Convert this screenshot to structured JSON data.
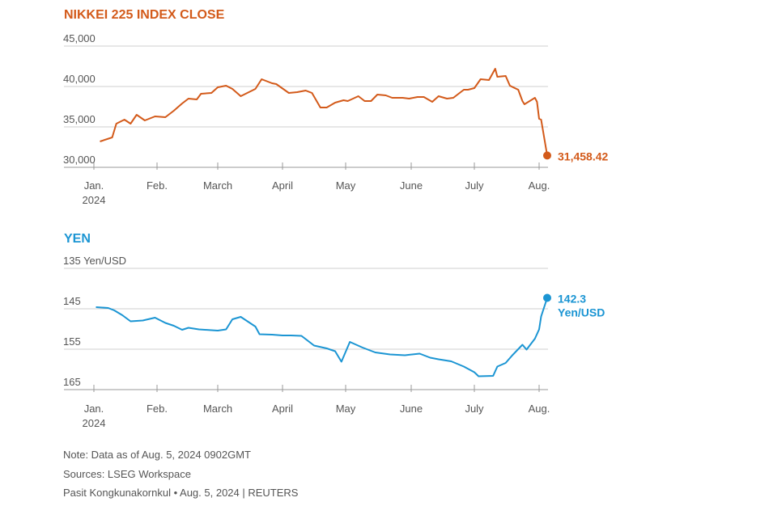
{
  "colors": {
    "nikkei": "#d35a1a",
    "yen": "#1b95d3",
    "text": "#555555",
    "grid": "#cfcfcf"
  },
  "months": [
    "Jan.",
    "Feb.",
    "March",
    "April",
    "May",
    "June",
    "July",
    "Aug."
  ],
  "year": "2024",
  "chart_data": [
    {
      "type": "line",
      "title": "NIKKEI 225 INDEX CLOSE",
      "ylim": [
        30000,
        45000
      ],
      "yticks": [
        "45,000",
        "40,000",
        "35,000",
        "30,000"
      ],
      "ytick_values": [
        45000,
        40000,
        35000,
        30000
      ],
      "y_inverted": false,
      "end_label": [
        "31,458.42"
      ],
      "series": [
        {
          "x": [
            "2024-01-04",
            "2024-01-10",
            "2024-01-12",
            "2024-01-16",
            "2024-01-19",
            "2024-01-22",
            "2024-01-26",
            "2024-01-31",
            "2024-02-05",
            "2024-02-09",
            "2024-02-13",
            "2024-02-16",
            "2024-02-20",
            "2024-02-22",
            "2024-02-27",
            "2024-03-01",
            "2024-03-05",
            "2024-03-08",
            "2024-03-12",
            "2024-03-19",
            "2024-03-22",
            "2024-03-27",
            "2024-03-29",
            "2024-04-04",
            "2024-04-08",
            "2024-04-12",
            "2024-04-15",
            "2024-04-19",
            "2024-04-22",
            "2024-04-26",
            "2024-04-30",
            "2024-05-02",
            "2024-05-07",
            "2024-05-10",
            "2024-05-13",
            "2024-05-16",
            "2024-05-20",
            "2024-05-23",
            "2024-05-28",
            "2024-05-31",
            "2024-06-04",
            "2024-06-07",
            "2024-06-11",
            "2024-06-14",
            "2024-06-18",
            "2024-06-21",
            "2024-06-26",
            "2024-06-28",
            "2024-07-01",
            "2024-07-04",
            "2024-07-08",
            "2024-07-11",
            "2024-07-12",
            "2024-07-16",
            "2024-07-18",
            "2024-07-22",
            "2024-07-24",
            "2024-07-25",
            "2024-07-30",
            "2024-07-31",
            "2024-08-01",
            "2024-08-02",
            "2024-08-05"
          ],
          "values": [
            33200,
            33700,
            35400,
            35900,
            35400,
            36500,
            35800,
            36300,
            36200,
            37000,
            37900,
            38500,
            38400,
            39100,
            39200,
            39900,
            40100,
            39700,
            38800,
            39700,
            40900,
            40400,
            40300,
            39200,
            39300,
            39500,
            39200,
            37400,
            37400,
            38000,
            38300,
            38200,
            38800,
            38200,
            38200,
            39000,
            38900,
            38600,
            38600,
            38500,
            38700,
            38700,
            38100,
            38800,
            38500,
            38600,
            39600,
            39600,
            39800,
            40900,
            40800,
            42200,
            41200,
            41300,
            40100,
            39600,
            38200,
            37800,
            38600,
            38100,
            36000,
            35900,
            31458.42
          ]
        }
      ]
    },
    {
      "type": "line",
      "title": "YEN",
      "ylabel": "Yen/USD",
      "ylim": [
        135,
        165
      ],
      "yticks": [
        "135 Yen/USD",
        "145",
        "155",
        "165"
      ],
      "ytick_values": [
        135,
        145,
        155,
        165
      ],
      "y_inverted": true,
      "end_label": [
        "142.3",
        "Yen/USD"
      ],
      "series": [
        {
          "x": [
            "2024-01-02",
            "2024-01-08",
            "2024-01-11",
            "2024-01-15",
            "2024-01-19",
            "2024-01-25",
            "2024-01-31",
            "2024-02-05",
            "2024-02-09",
            "2024-02-13",
            "2024-02-16",
            "2024-02-21",
            "2024-02-27",
            "2024-03-01",
            "2024-03-05",
            "2024-03-08",
            "2024-03-12",
            "2024-03-19",
            "2024-03-21",
            "2024-03-27",
            "2024-04-01",
            "2024-04-05",
            "2024-04-10",
            "2024-04-16",
            "2024-04-22",
            "2024-04-26",
            "2024-04-29",
            "2024-05-03",
            "2024-05-09",
            "2024-05-15",
            "2024-05-22",
            "2024-05-29",
            "2024-06-05",
            "2024-06-10",
            "2024-06-14",
            "2024-06-20",
            "2024-06-26",
            "2024-07-01",
            "2024-07-03",
            "2024-07-10",
            "2024-07-12",
            "2024-07-16",
            "2024-07-19",
            "2024-07-24",
            "2024-07-26",
            "2024-07-30",
            "2024-08-01",
            "2024-08-02",
            "2024-08-05"
          ],
          "values": [
            144.6,
            144.8,
            145.4,
            146.6,
            148.1,
            147.9,
            147.2,
            148.5,
            149.2,
            150.2,
            149.7,
            150.1,
            150.3,
            150.4,
            150.1,
            147.6,
            147.0,
            149.4,
            151.3,
            151.4,
            151.6,
            151.6,
            151.7,
            154.1,
            154.8,
            155.5,
            158.1,
            153.2,
            154.6,
            155.8,
            156.3,
            156.5,
            156.1,
            157.1,
            157.5,
            158.0,
            159.3,
            160.7,
            161.7,
            161.6,
            159.3,
            158.4,
            156.6,
            153.9,
            155.1,
            152.4,
            150.1,
            146.9,
            142.3
          ]
        }
      ]
    }
  ],
  "notes": {
    "note": "Note: Data as of Aug. 5, 2024 0902GMT",
    "sources": "Sources: LSEG Workspace",
    "credit": "Pasit Kongkunakornkul • Aug. 5, 2024 | REUTERS"
  }
}
